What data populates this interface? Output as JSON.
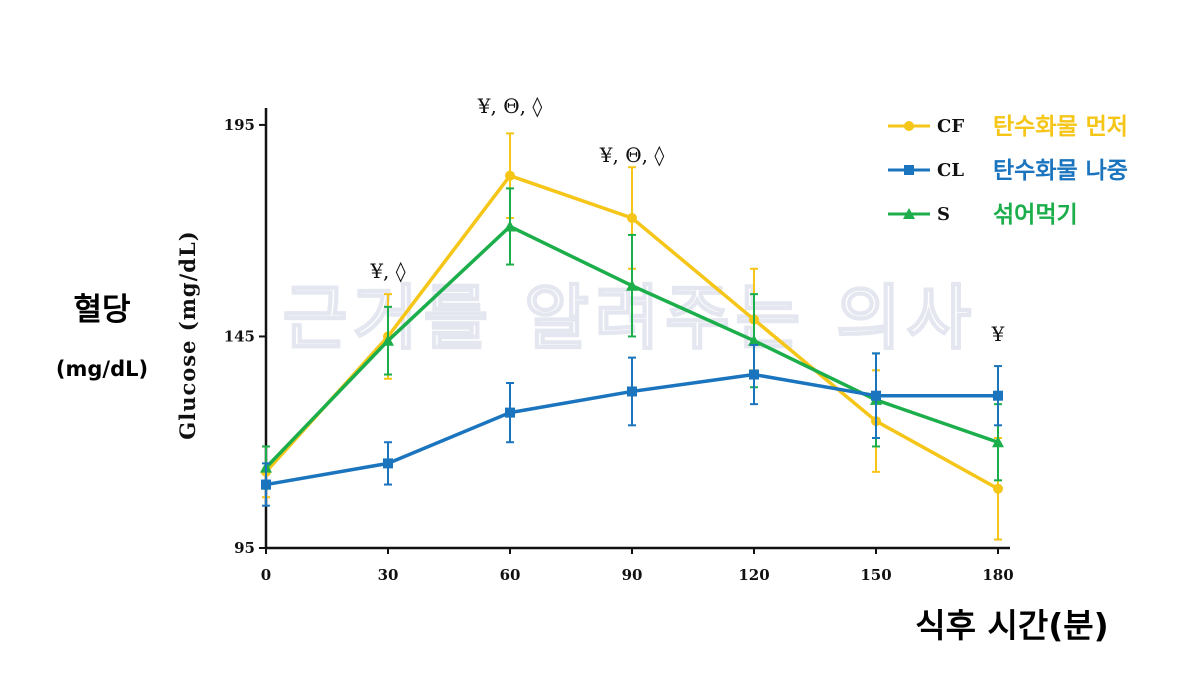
{
  "watermark": "근거를 알려주는 의사",
  "y_title_ko": "혈당",
  "y_unit_ko": "(mg/dL)",
  "x_title_ko": "식후 시간(분)",
  "colors": {
    "CF": "#F5C518",
    "CL": "#1A74BE",
    "S": "#1CAE4B"
  },
  "chart_data": {
    "type": "line",
    "ylabel": "Glucose (mg/dL)",
    "x": [
      0,
      30,
      60,
      90,
      120,
      150,
      180
    ],
    "x_tick_labels": [
      "0",
      "30",
      "60",
      "90",
      "120",
      "150",
      "180"
    ],
    "xlim": [
      0,
      180
    ],
    "ylim": [
      95,
      199
    ],
    "y_ticks": [
      95,
      145,
      195
    ],
    "y_tick_labels": [
      "95",
      "145",
      "195"
    ],
    "grid": false,
    "legend_position": "top-right",
    "series": [
      {
        "name": "CF",
        "label_ko": "탄수화물 먼저",
        "marker": "circle",
        "color": "#F5C518",
        "values": [
          113,
          145,
          183,
          173,
          149,
          125,
          109
        ],
        "errors": [
          6,
          10,
          10,
          12,
          12,
          12,
          12
        ]
      },
      {
        "name": "CL",
        "label_ko": "탄수화물 나중",
        "marker": "square",
        "color": "#1A74BE",
        "values": [
          110,
          115,
          127,
          132,
          136,
          131,
          131
        ],
        "errors": [
          5,
          5,
          7,
          8,
          7,
          10,
          7
        ]
      },
      {
        "name": "S",
        "label_ko": "섞어먹기",
        "marker": "triangle",
        "color": "#1CAE4B",
        "values": [
          114,
          144,
          171,
          157,
          144,
          130,
          120
        ],
        "errors": [
          5,
          8,
          9,
          12,
          11,
          11,
          9
        ]
      }
    ],
    "annotations": [
      {
        "x": 30,
        "text": "¥, ◊"
      },
      {
        "x": 60,
        "text": "¥, Θ, ◊"
      },
      {
        "x": 90,
        "text": "¥, Θ, ◊"
      },
      {
        "x": 180,
        "text": "¥"
      }
    ]
  }
}
